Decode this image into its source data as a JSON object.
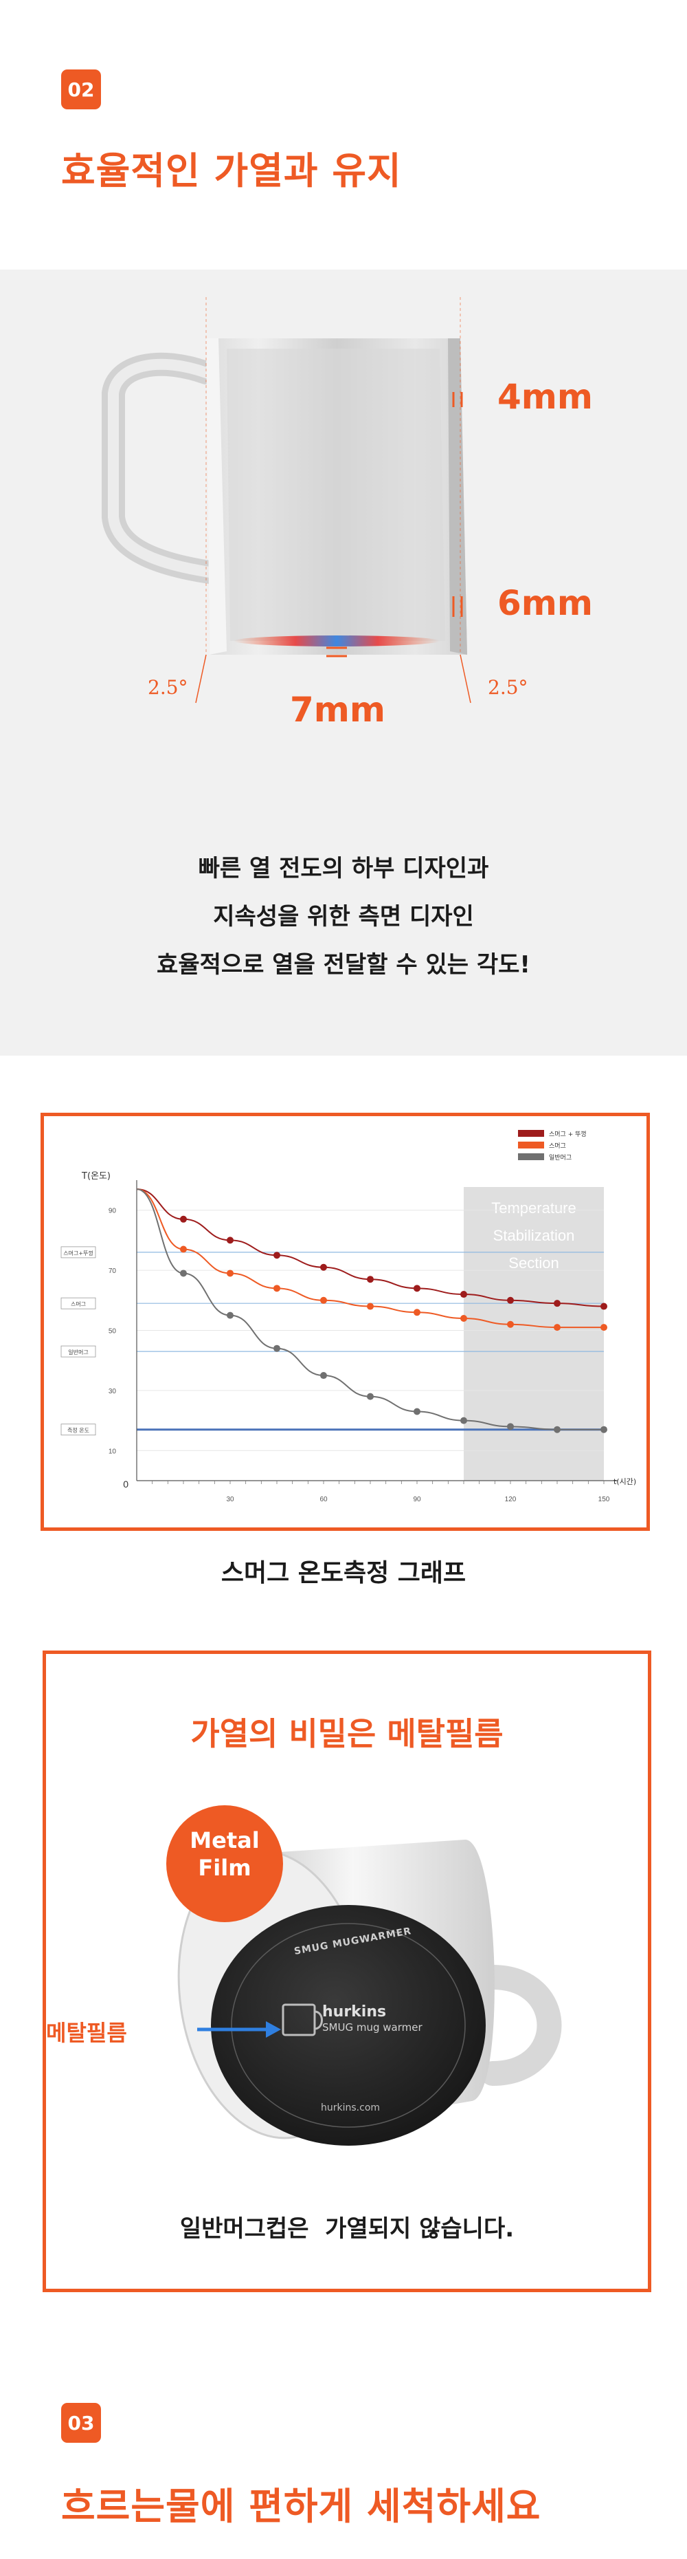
{
  "section1": {
    "number": "02",
    "title": "효율적인 가열과 유지"
  },
  "mug_spec": {
    "top_thickness": "4mm",
    "side_thickness": "6mm",
    "bottom_thickness": "7mm",
    "left_angle": "2.5°",
    "right_angle": "2.5°"
  },
  "description": [
    "빠른 열 전도의 하부 디자인과",
    "지속성을 위한 측면 디자인",
    "효율적으로 열을 전달할 수 있는 각도!"
  ],
  "chart_data": {
    "type": "line",
    "title": "",
    "xlabel": "t(시간)",
    "ylabel": "T(온도)",
    "xlim": [
      0,
      150
    ],
    "ylim": [
      0,
      100
    ],
    "x_ticks": [
      30,
      60,
      90,
      120,
      150
    ],
    "y_ticks": [
      10,
      30,
      50,
      70,
      90
    ],
    "origin_label": "0",
    "legend_position": "top-right",
    "stabilization_section": {
      "label_lines": [
        "Temperature",
        "Stabilization",
        "Section"
      ],
      "x_start": 105,
      "x_end": 150
    },
    "reference_lines": [
      {
        "label": "스머그+뚜껑",
        "y": 76,
        "color": "#8fb8e0"
      },
      {
        "label": "스머그",
        "y": 59,
        "color": "#8fb8e0"
      },
      {
        "label": "일반머그",
        "y": 43,
        "color": "#8fb8e0"
      },
      {
        "label": "측정 온도",
        "y": 17,
        "color": "#4a72b8"
      }
    ],
    "x": [
      0,
      15,
      30,
      45,
      60,
      75,
      90,
      105,
      120,
      135,
      150
    ],
    "series": [
      {
        "name": "스머그 + 뚜껑",
        "color": "#9e1c1c",
        "values": [
          97,
          87,
          80,
          75,
          71,
          67,
          64,
          62,
          60,
          59,
          58
        ]
      },
      {
        "name": "스머그",
        "color": "#ee5a24",
        "values": [
          97,
          77,
          69,
          64,
          60,
          58,
          56,
          54,
          52,
          51,
          51
        ]
      },
      {
        "name": "일반머그",
        "color": "#707070",
        "values": [
          97,
          69,
          55,
          44,
          35,
          28,
          23,
          20,
          18,
          17,
          17
        ]
      }
    ]
  },
  "chart_caption": "스머그 온도측정 그래프",
  "secret": {
    "title": "가열의 비밀은 메탈필름",
    "circle_label": [
      "Metal",
      "Film"
    ],
    "arrow_label": "메탈필름",
    "ring_text": "SMUG MUGWARMER",
    "brand": "hurkins",
    "brand_sub": "SMUG mug warmer",
    "url": "hurkins.com",
    "caption": "일반머그컵은  가열되지 않습니다."
  },
  "section2": {
    "number": "03",
    "title": "흐르는물에 편하게 세척하세요"
  },
  "colors": {
    "accent": "#ee5a24",
    "dark_red": "#9e1c1c",
    "gray_series": "#707070"
  }
}
